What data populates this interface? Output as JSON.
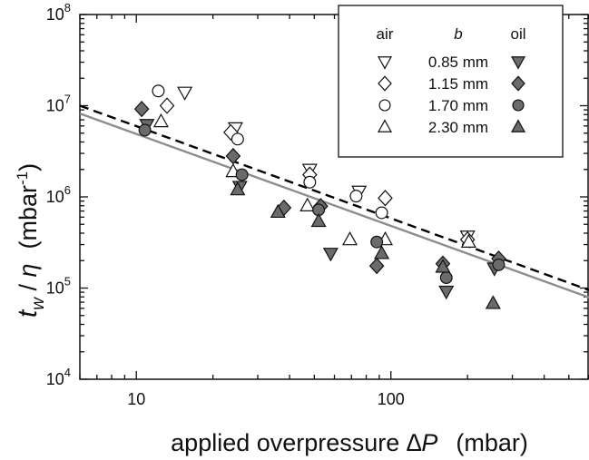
{
  "chart_data": {
    "type": "scatter",
    "x_scale": "log",
    "y_scale": "log",
    "xlim": [
      6,
      600
    ],
    "ylim": [
      10000,
      100000000
    ],
    "grid": false,
    "xlabel": {
      "main": "applied overpressure ",
      "symbol": "∆P",
      "unit": "(mbar)"
    },
    "ylabel": {
      "t": "t",
      "sub": "w",
      "slash": " / ",
      "eta": "η",
      "unit": "(mbar",
      "unit_sup": "-1",
      "unit_close": ")"
    },
    "x_ticks": [
      {
        "value": 10,
        "label": "10"
      },
      {
        "value": 100,
        "label": "100"
      }
    ],
    "y_ticks": [
      {
        "value": 10000,
        "base": "10",
        "exp": "4"
      },
      {
        "value": 100000,
        "base": "10",
        "exp": "5"
      },
      {
        "value": 1000000,
        "base": "10",
        "exp": "6"
      },
      {
        "value": 10000000,
        "base": "10",
        "exp": "7"
      },
      {
        "value": 100000000,
        "base": "10",
        "exp": "8"
      }
    ],
    "legend": {
      "placement": "top-right",
      "header_left": "air",
      "header_mid": "b",
      "header_right": "oil",
      "rows": [
        "0.85 mm",
        "1.15 mm",
        "1.70 mm",
        "2.30 mm"
      ]
    },
    "series": [
      {
        "marker": "triangle-down",
        "fill": "open",
        "points": [
          [
            15.5,
            14000000
          ],
          [
            24.5,
            5700000
          ],
          [
            48,
            2000000
          ],
          [
            75,
            1150000
          ],
          [
            200,
            370000
          ]
        ]
      },
      {
        "marker": "diamond",
        "fill": "open",
        "points": [
          [
            13.2,
            10000000
          ],
          [
            23.5,
            5100000
          ],
          [
            48,
            1750000
          ],
          [
            95,
            970000
          ],
          [
            200,
            340000
          ]
        ]
      },
      {
        "marker": "circle",
        "fill": "open",
        "points": [
          [
            12.2,
            14500000
          ],
          [
            25,
            4300000
          ],
          [
            48,
            1450000
          ],
          [
            73,
            1020000
          ],
          [
            92,
            670000
          ]
        ]
      },
      {
        "marker": "triangle-up",
        "fill": "open",
        "points": [
          [
            12.5,
            6700000
          ],
          [
            24,
            1900000
          ],
          [
            47,
            800000
          ],
          [
            69,
            340000
          ],
          [
            95,
            340000
          ],
          [
            202,
            320000
          ]
        ]
      },
      {
        "marker": "triangle-down",
        "fill": "filled",
        "points": [
          [
            11,
            6200000
          ],
          [
            25.5,
            1300000
          ],
          [
            58,
            240000
          ],
          [
            165,
            92000
          ],
          [
            255,
            165000
          ]
        ]
      },
      {
        "marker": "diamond",
        "fill": "filled",
        "points": [
          [
            10.5,
            9200000
          ],
          [
            24,
            2800000
          ],
          [
            38,
            760000
          ],
          [
            53,
            790000
          ],
          [
            88,
            175000
          ],
          [
            160,
            185000
          ],
          [
            265,
            210000
          ]
        ]
      },
      {
        "marker": "circle",
        "fill": "filled",
        "points": [
          [
            10.8,
            5400000
          ],
          [
            26,
            1750000
          ],
          [
            52,
            720000
          ],
          [
            88,
            320000
          ],
          [
            165,
            130000
          ],
          [
            265,
            180000
          ]
        ]
      },
      {
        "marker": "triangle-up",
        "fill": "filled",
        "points": [
          [
            25,
            1200000
          ],
          [
            36,
            680000
          ],
          [
            52,
            540000
          ],
          [
            92,
            240000
          ],
          [
            160,
            170000
          ],
          [
            252,
            68000
          ]
        ]
      }
    ],
    "fit_lines": [
      {
        "style": "dashed",
        "color": "#000000",
        "from": [
          6,
          10000000
        ],
        "to": [
          600,
          95000.0
        ]
      },
      {
        "style": "solid",
        "color": "#8c8c8c",
        "from": [
          6,
          8200000
        ],
        "to": [
          600,
          79000
        ]
      }
    ],
    "colors": {
      "open_marker": "#ffffff",
      "filled_marker": "#6b6b6b",
      "edge": "#111111"
    }
  }
}
